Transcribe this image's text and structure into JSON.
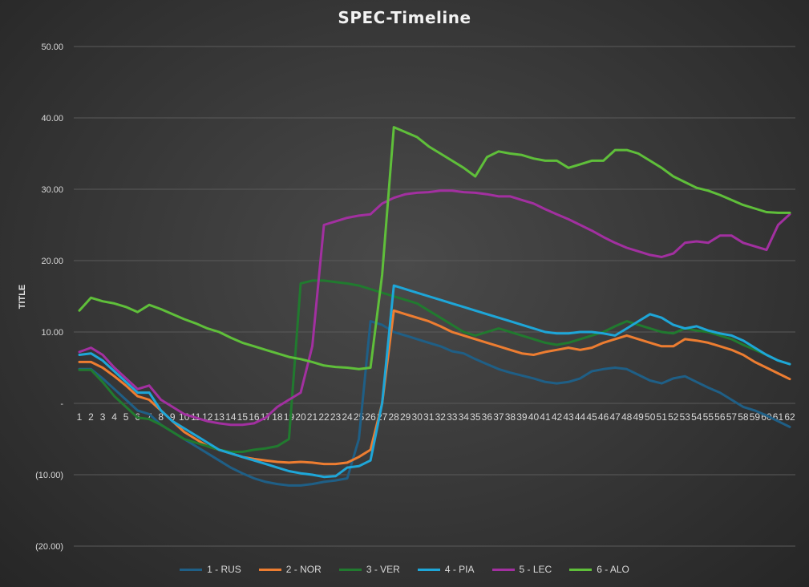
{
  "chart_data": {
    "type": "line",
    "title": "SPEC-Timeline",
    "ylabel": "TITLE",
    "xlabel": "",
    "ylim": [
      -20,
      50
    ],
    "y_ticks": [
      50,
      40,
      30,
      20,
      10,
      0,
      -10,
      -20
    ],
    "y_tick_labels": [
      "50.00",
      "40.00",
      "30.00",
      "20.00",
      "10.00",
      "-",
      "(10.00)",
      "(20.00)"
    ],
    "categories": [
      "1",
      "2",
      "3",
      "4",
      "5",
      "6",
      "7",
      "8",
      "9",
      "10",
      "11",
      "12",
      "13",
      "14",
      "15",
      "16",
      "17",
      "18",
      "19",
      "20",
      "21",
      "22",
      "23",
      "24",
      "25",
      "26",
      "27",
      "28",
      "29",
      "30",
      "31",
      "32",
      "33",
      "34",
      "35",
      "36",
      "37",
      "38",
      "39",
      "40",
      "41",
      "42",
      "43",
      "44",
      "45",
      "46",
      "47",
      "48",
      "49",
      "50",
      "51",
      "52",
      "53",
      "54",
      "55",
      "56",
      "57",
      "58",
      "59",
      "60",
      "61",
      "62"
    ],
    "legend_position": "bottom",
    "series": [
      {
        "name": "1 - RUS",
        "color": "#1f5f86",
        "values": [
          4.8,
          4.8,
          3.5,
          2,
          0.5,
          -1,
          -1.5,
          -3,
          -4,
          -5,
          -6,
          -7,
          -8,
          -9,
          -9.8,
          -10.5,
          -11,
          -11.3,
          -11.5,
          -11.5,
          -11.3,
          -11,
          -10.8,
          -10.5,
          -5,
          11.5,
          11,
          10,
          9.5,
          9,
          8.5,
          8,
          7.3,
          7,
          6.2,
          5.5,
          4.8,
          4.3,
          3.9,
          3.5,
          3,
          2.8,
          3,
          3.5,
          4.5,
          4.8,
          5,
          4.8,
          4,
          3.2,
          2.8,
          3.5,
          3.8,
          3,
          2.2,
          1.5,
          0.5,
          -0.5,
          -1,
          -1.7,
          -2.5,
          -3.3
        ]
      },
      {
        "name": "2 - NOR",
        "color": "#ed7d31",
        "values": [
          5.8,
          5.8,
          5,
          3.8,
          2.5,
          1,
          0.5,
          -1,
          -2.5,
          -4,
          -5,
          -6,
          -6.5,
          -7,
          -7.5,
          -7.8,
          -8,
          -8.2,
          -8.3,
          -8.2,
          -8.3,
          -8.5,
          -8.5,
          -8.3,
          -7.5,
          -6.5,
          0,
          13,
          12.5,
          12,
          11.5,
          10.8,
          10,
          9.5,
          9,
          8.5,
          8,
          7.5,
          7,
          6.8,
          7.2,
          7.5,
          7.8,
          7.5,
          7.8,
          8.5,
          9,
          9.5,
          9,
          8.5,
          8,
          8,
          9,
          8.8,
          8.5,
          8,
          7.5,
          6.8,
          5.8,
          5,
          4.2,
          3.4
        ]
      },
      {
        "name": "3 - VER",
        "color": "#217a2f",
        "values": [
          4.7,
          4.7,
          3,
          1,
          -0.5,
          -2,
          -2.2,
          -3,
          -4,
          -5,
          -5.5,
          -6,
          -6.5,
          -6.8,
          -6.8,
          -6.5,
          -6.3,
          -6,
          -5,
          16.8,
          17.2,
          17.2,
          17,
          16.8,
          16.5,
          16,
          15.5,
          15,
          14.5,
          14,
          13,
          12,
          11,
          10,
          9.5,
          10,
          10.5,
          10,
          9.5,
          9,
          8.5,
          8.2,
          8.5,
          9,
          9.5,
          10,
          10.8,
          11.5,
          11,
          10.5,
          10,
          9.8,
          10.5,
          10.2,
          10,
          9.5,
          9,
          8.2,
          7.5,
          6.8,
          6,
          5.5
        ]
      },
      {
        "name": "4 - PIA",
        "color": "#1ea6d8",
        "values": [
          6.8,
          7,
          6,
          4.5,
          3,
          1.5,
          1.5,
          -1,
          -2.5,
          -3.5,
          -4.5,
          -5.5,
          -6.5,
          -7,
          -7.5,
          -8,
          -8.5,
          -9,
          -9.5,
          -9.8,
          -10,
          -10.3,
          -10.2,
          -9,
          -8.8,
          -8,
          0,
          16.5,
          16,
          15.5,
          15,
          14.5,
          14,
          13.5,
          13,
          12.5,
          12,
          11.5,
          11,
          10.5,
          10,
          9.8,
          9.8,
          10,
          10,
          9.8,
          9.5,
          10.5,
          11.5,
          12.5,
          12,
          11,
          10.5,
          10.8,
          10.2,
          9.8,
          9.5,
          8.8,
          7.8,
          6.8,
          6,
          5.5
        ]
      },
      {
        "name": "5 - LEC",
        "color": "#a230a0",
        "values": [
          7.2,
          7.8,
          6.8,
          5,
          3.5,
          2,
          2.5,
          0.5,
          -0.5,
          -1.5,
          -2,
          -2.5,
          -2.8,
          -3,
          -3,
          -2.8,
          -2,
          -0.5,
          0.5,
          1.5,
          8,
          25,
          25.5,
          26,
          26.3,
          26.5,
          28,
          28.8,
          29.3,
          29.5,
          29.6,
          29.8,
          29.8,
          29.6,
          29.5,
          29.3,
          29,
          29,
          28.5,
          28,
          27.2,
          26.5,
          25.8,
          25,
          24.2,
          23.3,
          22.5,
          21.8,
          21.3,
          20.8,
          20.5,
          21,
          22.5,
          22.7,
          22.5,
          23.5,
          23.5,
          22.5,
          22,
          21.5,
          25,
          26.5
        ]
      },
      {
        "name": "6 - ALO",
        "color": "#5fbf3a",
        "values": [
          13,
          14.8,
          14.3,
          14,
          13.5,
          12.8,
          13.8,
          13.2,
          12.5,
          11.8,
          11.2,
          10.5,
          10,
          9.2,
          8.5,
          8,
          7.5,
          7,
          6.5,
          6.2,
          5.8,
          5.3,
          5.1,
          5,
          4.8,
          5,
          18,
          38.7,
          38,
          37.3,
          36,
          35,
          34,
          33,
          31.8,
          34.5,
          35.3,
          35,
          34.8,
          34.3,
          34,
          34,
          33,
          33.5,
          34,
          34,
          35.5,
          35.5,
          35,
          34,
          33,
          31.8,
          31,
          30.2,
          29.8,
          29.2,
          28.5,
          27.8,
          27.3,
          26.8,
          26.7,
          26.7
        ]
      }
    ]
  }
}
